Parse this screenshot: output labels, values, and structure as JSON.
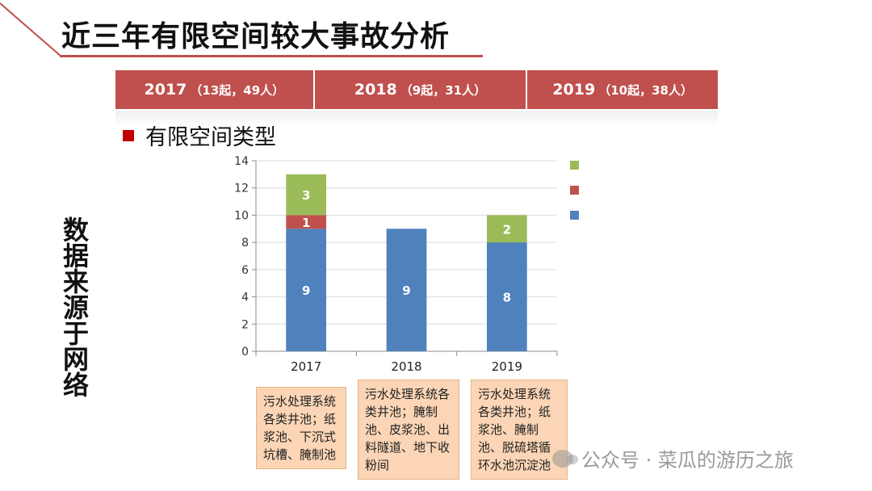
{
  "slide": {
    "title": "近三年有限空间较大事故分析",
    "accent_color": "#c0504d"
  },
  "year_bar": [
    {
      "year": "2017",
      "detail": "（13起，49人）"
    },
    {
      "year": "2018",
      "detail": "（9起，31人）"
    },
    {
      "year": "2019",
      "detail": "（10起，38人）"
    }
  ],
  "section_heading": "有限空间类型",
  "side_note": "数据来源于网络",
  "notes": [
    "污水处理系统各类井池；纸浆池、下沉式坑槽、腌制池",
    "污水处理系统各类井池；腌制池、皮浆池、出料隧道、地下收粉间",
    "污水处理系统各类井池；纸浆池、腌制池、脱硫塔循环水池沉淀池"
  ],
  "watermark": "公众号 · 菜瓜的游历之旅",
  "chart_data": {
    "type": "bar",
    "stacked": true,
    "title": "",
    "xlabel": "",
    "ylabel": "",
    "categories": [
      "2017",
      "2018",
      "2019"
    ],
    "ylim": [
      0,
      14
    ],
    "yticks": [
      0,
      2,
      4,
      6,
      8,
      10,
      12,
      14
    ],
    "grid": true,
    "legend": "right",
    "series": [
      {
        "name": "",
        "color": "#4f81bd",
        "values": [
          9,
          9,
          8
        ]
      },
      {
        "name": "",
        "color": "#c0504d",
        "values": [
          1,
          0,
          0
        ]
      },
      {
        "name": "",
        "color": "#9bbb59",
        "values": [
          3,
          0,
          2
        ]
      }
    ]
  }
}
